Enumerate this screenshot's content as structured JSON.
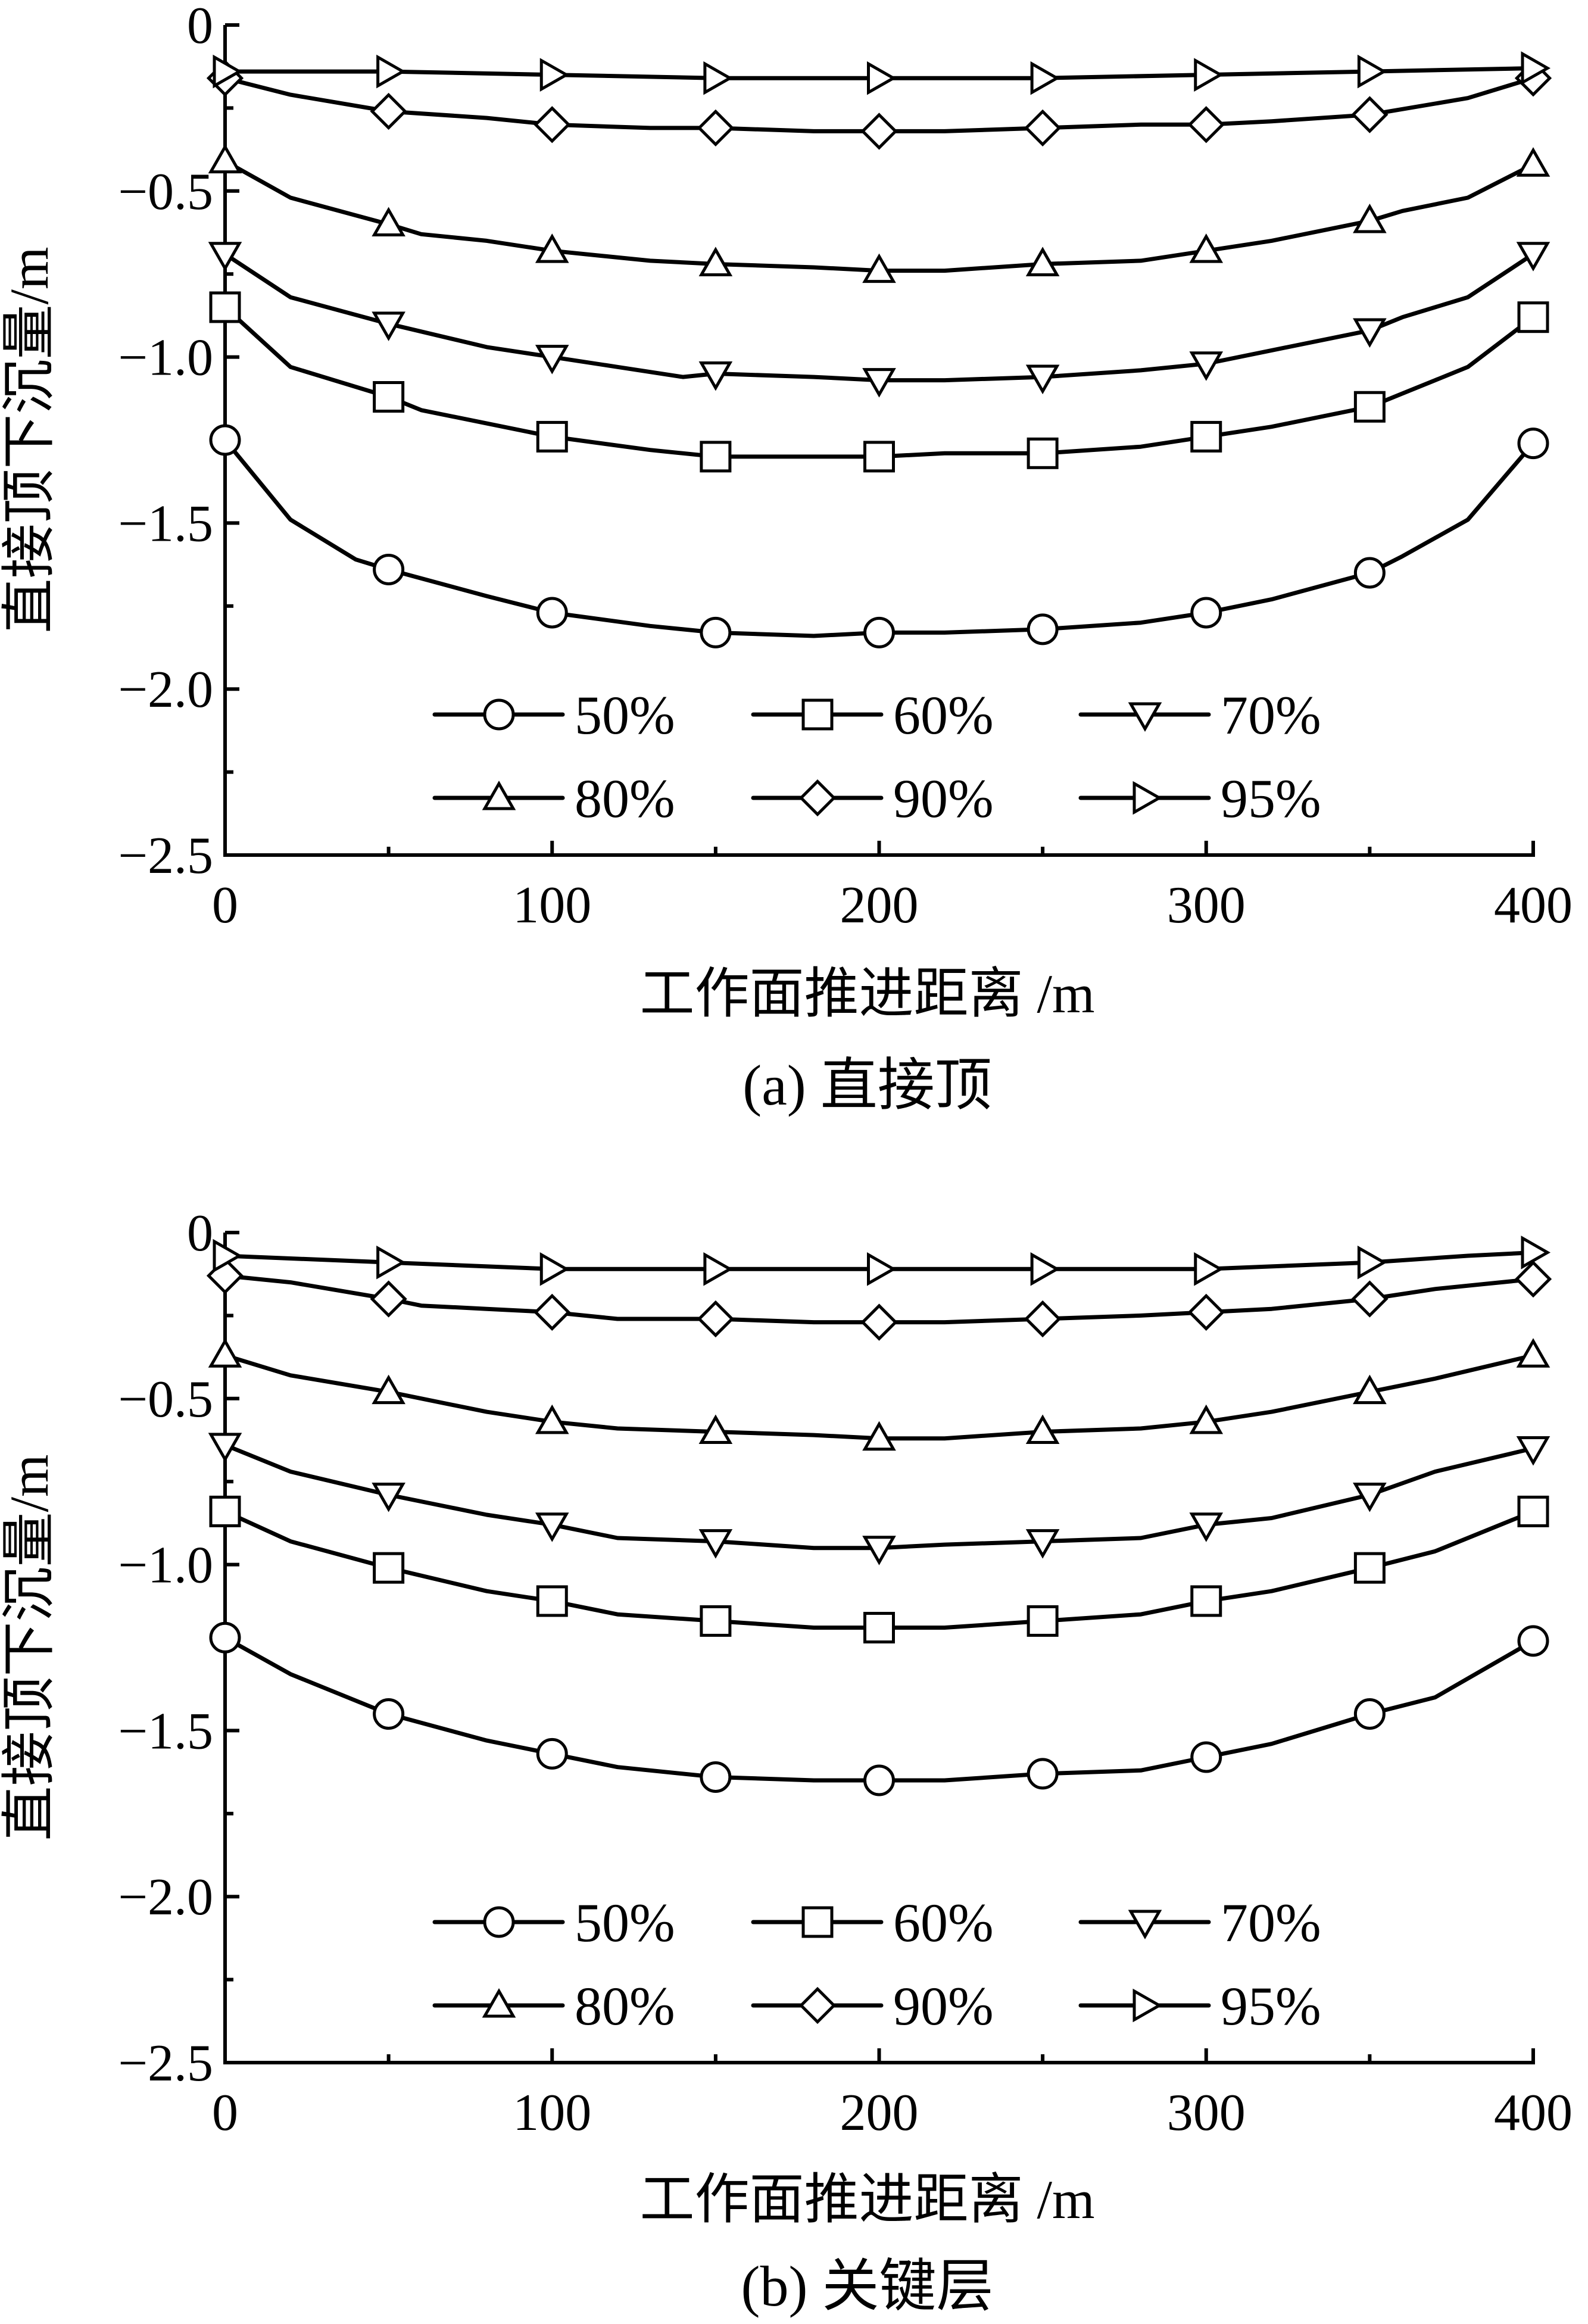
{
  "chart_data": [
    {
      "type": "line",
      "caption": "(a)  直接顶",
      "xlabel": "工作面推进距离 /m",
      "ylabel": "直接顶下沉量/m",
      "xlim": [
        0,
        400
      ],
      "ylim": [
        -2.5,
        0
      ],
      "x_ticks": [
        "0",
        "100",
        "200",
        "300",
        "400"
      ],
      "y_ticks": [
        "0",
        "−0.5",
        "−1.0",
        "−1.5",
        "−2.0",
        "−2.5"
      ],
      "legend_position": "bottom-center",
      "series": [
        {
          "name": "50%",
          "marker": "circle",
          "x": [
            0,
            20,
            40,
            50,
            80,
            100,
            130,
            150,
            180,
            200,
            220,
            250,
            280,
            300,
            320,
            350,
            360,
            380,
            400
          ],
          "y": [
            -1.25,
            -1.49,
            -1.61,
            -1.64,
            -1.72,
            -1.77,
            -1.81,
            -1.83,
            -1.84,
            -1.83,
            -1.83,
            -1.82,
            -1.8,
            -1.77,
            -1.73,
            -1.65,
            -1.6,
            -1.49,
            -1.26
          ]
        },
        {
          "name": "60%",
          "marker": "square",
          "x": [
            0,
            20,
            50,
            60,
            80,
            100,
            130,
            150,
            180,
            200,
            220,
            250,
            280,
            300,
            320,
            350,
            360,
            380,
            400
          ],
          "y": [
            -0.85,
            -1.03,
            -1.12,
            -1.16,
            -1.2,
            -1.24,
            -1.28,
            -1.3,
            -1.3,
            -1.3,
            -1.29,
            -1.29,
            -1.27,
            -1.24,
            -1.21,
            -1.15,
            -1.11,
            -1.03,
            -0.88
          ]
        },
        {
          "name": "70%",
          "marker": "triangle-down",
          "x": [
            0,
            20,
            50,
            80,
            100,
            120,
            140,
            150,
            180,
            200,
            220,
            250,
            280,
            300,
            320,
            350,
            360,
            380,
            400
          ],
          "y": [
            -0.69,
            -0.82,
            -0.9,
            -0.97,
            -1.0,
            -1.03,
            -1.06,
            -1.05,
            -1.06,
            -1.07,
            -1.07,
            -1.06,
            -1.04,
            -1.02,
            -0.98,
            -0.92,
            -0.88,
            -0.82,
            -0.69
          ]
        },
        {
          "name": "80%",
          "marker": "triangle-up",
          "x": [
            0,
            20,
            50,
            60,
            80,
            100,
            130,
            150,
            180,
            200,
            220,
            250,
            280,
            300,
            320,
            350,
            360,
            380,
            400
          ],
          "y": [
            -0.41,
            -0.52,
            -0.6,
            -0.63,
            -0.65,
            -0.68,
            -0.71,
            -0.72,
            -0.73,
            -0.74,
            -0.74,
            -0.72,
            -0.71,
            -0.68,
            -0.65,
            -0.59,
            -0.56,
            -0.52,
            -0.42
          ]
        },
        {
          "name": "90%",
          "marker": "diamond",
          "x": [
            0,
            20,
            50,
            80,
            100,
            130,
            150,
            180,
            200,
            220,
            250,
            280,
            300,
            320,
            350,
            380,
            400
          ],
          "y": [
            -0.16,
            -0.21,
            -0.26,
            -0.28,
            -0.3,
            -0.31,
            -0.31,
            -0.32,
            -0.32,
            -0.32,
            -0.31,
            -0.3,
            -0.3,
            -0.29,
            -0.27,
            -0.22,
            -0.16
          ]
        },
        {
          "name": "95%",
          "marker": "triangle-right",
          "x": [
            0,
            50,
            100,
            150,
            200,
            250,
            300,
            350,
            400
          ],
          "y": [
            -0.14,
            -0.14,
            -0.15,
            -0.16,
            -0.16,
            -0.16,
            -0.15,
            -0.14,
            -0.13
          ]
        }
      ]
    },
    {
      "type": "line",
      "caption": "(b)  关键层",
      "xlabel": "工作面推进距离 /m",
      "ylabel": "直接顶下沉量/m",
      "xlim": [
        0,
        400
      ],
      "ylim": [
        -2.5,
        0
      ],
      "x_ticks": [
        "0",
        "100",
        "200",
        "300",
        "400"
      ],
      "y_ticks": [
        "0",
        "−0.5",
        "−1.0",
        "−1.5",
        "−2.0",
        "−2.5"
      ],
      "legend_position": "bottom-center",
      "series": [
        {
          "name": "50%",
          "marker": "circle",
          "x": [
            0,
            20,
            50,
            80,
            100,
            120,
            150,
            180,
            200,
            220,
            250,
            280,
            300,
            320,
            350,
            370,
            400
          ],
          "y": [
            -1.22,
            -1.33,
            -1.45,
            -1.53,
            -1.57,
            -1.61,
            -1.64,
            -1.65,
            -1.65,
            -1.65,
            -1.63,
            -1.62,
            -1.58,
            -1.54,
            -1.45,
            -1.4,
            -1.23
          ]
        },
        {
          "name": "60%",
          "marker": "square",
          "x": [
            0,
            20,
            50,
            80,
            100,
            120,
            150,
            180,
            200,
            220,
            250,
            280,
            300,
            320,
            350,
            370,
            400
          ],
          "y": [
            -0.84,
            -0.93,
            -1.01,
            -1.08,
            -1.11,
            -1.15,
            -1.17,
            -1.19,
            -1.19,
            -1.19,
            -1.17,
            -1.15,
            -1.11,
            -1.08,
            -1.01,
            -0.96,
            -0.84
          ]
        },
        {
          "name": "70%",
          "marker": "triangle-down",
          "x": [
            0,
            20,
            50,
            80,
            100,
            120,
            150,
            180,
            200,
            220,
            250,
            280,
            300,
            320,
            350,
            370,
            400
          ],
          "y": [
            -0.64,
            -0.72,
            -0.79,
            -0.85,
            -0.88,
            -0.92,
            -0.93,
            -0.95,
            -0.95,
            -0.94,
            -0.93,
            -0.92,
            -0.88,
            -0.86,
            -0.79,
            -0.72,
            -0.65
          ]
        },
        {
          "name": "80%",
          "marker": "triangle-up",
          "x": [
            0,
            20,
            50,
            80,
            100,
            120,
            150,
            180,
            200,
            220,
            250,
            280,
            300,
            320,
            350,
            370,
            400
          ],
          "y": [
            -0.37,
            -0.43,
            -0.48,
            -0.54,
            -0.57,
            -0.59,
            -0.6,
            -0.61,
            -0.62,
            -0.62,
            -0.6,
            -0.59,
            -0.57,
            -0.54,
            -0.48,
            -0.44,
            -0.37
          ]
        },
        {
          "name": "90%",
          "marker": "diamond",
          "x": [
            0,
            20,
            50,
            60,
            80,
            100,
            120,
            150,
            180,
            200,
            220,
            250,
            280,
            300,
            320,
            350,
            370,
            400
          ],
          "y": [
            -0.13,
            -0.15,
            -0.2,
            -0.22,
            -0.23,
            -0.24,
            -0.26,
            -0.26,
            -0.27,
            -0.27,
            -0.27,
            -0.26,
            -0.25,
            -0.24,
            -0.23,
            -0.2,
            -0.17,
            -0.14
          ]
        },
        {
          "name": "95%",
          "marker": "triangle-right",
          "x": [
            0,
            50,
            100,
            150,
            200,
            250,
            300,
            350,
            380,
            400
          ],
          "y": [
            -0.07,
            -0.09,
            -0.11,
            -0.11,
            -0.11,
            -0.11,
            -0.11,
            -0.09,
            -0.07,
            -0.06
          ]
        }
      ]
    }
  ]
}
